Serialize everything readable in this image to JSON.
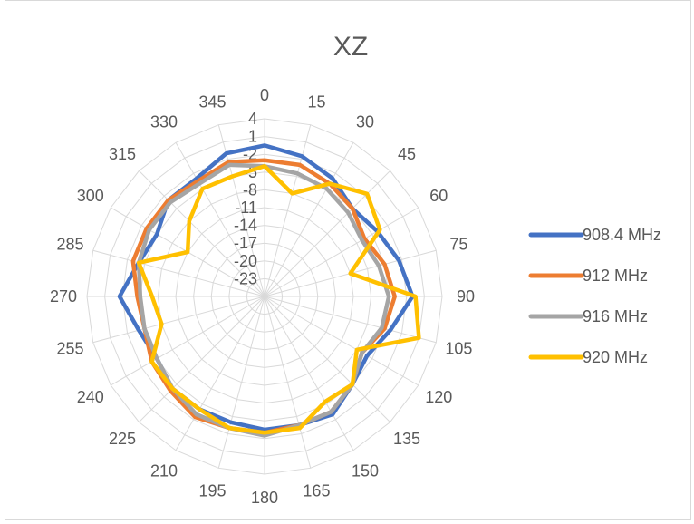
{
  "chart_data": {
    "type": "radar",
    "title": "XZ",
    "categories": [
      "0",
      "15",
      "30",
      "45",
      "60",
      "75",
      "90",
      "105",
      "120",
      "135",
      "150",
      "165",
      "180",
      "195",
      "210",
      "225",
      "240",
      "255",
      "270",
      "285",
      "300",
      "315",
      "330",
      "345"
    ],
    "radial_ticks": [
      "4",
      "1",
      "-2",
      "-5",
      "-8",
      "-11",
      "-14",
      "-17",
      "-20",
      "-23"
    ],
    "rlim": [
      -26,
      4
    ],
    "grid": true,
    "legend_position": "right",
    "series": [
      {
        "name": "908.4 MHz",
        "color": "#4472C4",
        "values": [
          -0.5,
          -1.5,
          -3,
          -5,
          -4,
          -2.5,
          -1,
          -4,
          -6,
          -5,
          -3,
          -3.5,
          -3.5,
          -4,
          -4,
          -4,
          -5,
          -4,
          -1.5,
          -4,
          -5,
          -3,
          -3,
          -1
        ]
      },
      {
        "name": "912 MHz",
        "color": "#ED7D31",
        "values": [
          -3,
          -3,
          -4,
          -5,
          -6.5,
          -5,
          -4,
          -5,
          -7,
          -5,
          -3.5,
          -3.5,
          -3,
          -3,
          -2.5,
          -3.5,
          -4,
          -5,
          -4.5,
          -3,
          -3,
          -3,
          -3.5,
          -2.5
        ]
      },
      {
        "name": "916 MHz",
        "color": "#A5A5A5",
        "values": [
          -4,
          -4.5,
          -5,
          -6,
          -7,
          -6,
          -5,
          -5.5,
          -7,
          -5,
          -3.5,
          -3.5,
          -2.5,
          -3,
          -3,
          -4,
          -5,
          -5,
          -5,
          -4,
          -3.5,
          -3.5,
          -4,
          -3
        ]
      },
      {
        "name": "920 MHz",
        "color": "#FFC000",
        "values": [
          -4,
          -8,
          -4,
          -1.5,
          -3.5,
          -11,
          -0.5,
          1,
          -8,
          -5,
          -5.5,
          -3,
          -3,
          -3,
          -4,
          -4,
          -4,
          -8,
          -7,
          -4,
          -11,
          -8,
          -5,
          -5
        ]
      }
    ]
  }
}
